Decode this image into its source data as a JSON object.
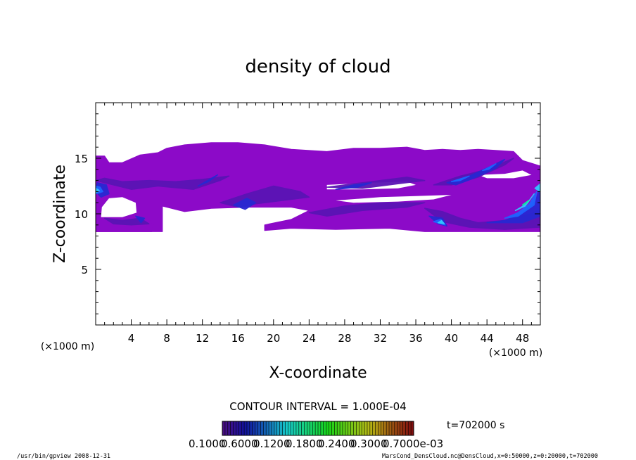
{
  "chart_data": {
    "type": "heatmap",
    "title": "density of cloud",
    "xlabel": "X-coordinate",
    "ylabel": "Z-coordinate",
    "x_unit_left": "(×1000 m)",
    "x_unit_right": "(×1000 m)",
    "xlim": [
      0,
      50
    ],
    "ylim": [
      0,
      20
    ],
    "x_ticks": [
      4,
      8,
      12,
      16,
      20,
      24,
      28,
      32,
      36,
      40,
      44,
      48
    ],
    "y_ticks": [
      5,
      10,
      15
    ],
    "contour_interval": "CONTOUR INTERVAL = 1.000E-04",
    "time_label": "t=702000 s",
    "colorbar_labels": [
      "0.1000",
      "0.6000",
      "0.1200",
      "0.1800",
      "0.2400",
      "0.3000",
      "0.7000e-03"
    ],
    "colors": {
      "level1": "#8c0ac8",
      "level2": "#5a14b4",
      "level3": "#2828d2",
      "level4": "#1e64ff",
      "level5": "#32c8ff",
      "level6": "#00ff96"
    },
    "regions": [
      {
        "level": 1,
        "points": [
          [
            0,
            8.4
          ],
          [
            0,
            15.2
          ],
          [
            1,
            15.2
          ],
          [
            1.5,
            14.6
          ],
          [
            3,
            14.6
          ],
          [
            5,
            15.3
          ],
          [
            7,
            15.5
          ],
          [
            8,
            15.9
          ],
          [
            10,
            16.2
          ],
          [
            13,
            16.4
          ],
          [
            16,
            16.4
          ],
          [
            19,
            16.2
          ],
          [
            22,
            15.8
          ],
          [
            26,
            15.6
          ],
          [
            29,
            15.9
          ],
          [
            32,
            15.9
          ],
          [
            35,
            16.0
          ],
          [
            37,
            15.7
          ],
          [
            39,
            15.8
          ],
          [
            41,
            15.7
          ],
          [
            43,
            15.8
          ],
          [
            45,
            15.7
          ],
          [
            47,
            15.6
          ],
          [
            48,
            14.8
          ],
          [
            50,
            14.3
          ],
          [
            50,
            8.4
          ],
          [
            37,
            8.4
          ],
          [
            33,
            8.7
          ],
          [
            27,
            8.6
          ],
          [
            22,
            8.7
          ],
          [
            19,
            8.5
          ],
          [
            19,
            9.0
          ],
          [
            22,
            9.5
          ],
          [
            24,
            10.3
          ],
          [
            22,
            10.6
          ],
          [
            17,
            10.6
          ],
          [
            13,
            10.5
          ],
          [
            10,
            10.2
          ],
          [
            9,
            10.4
          ],
          [
            7.5,
            10.7
          ],
          [
            7.5,
            8.4
          ]
        ]
      },
      {
        "level": 1,
        "points": [
          [
            0,
            8.4
          ],
          [
            0,
            9.2
          ],
          [
            2,
            9.6
          ],
          [
            4,
            9.7
          ],
          [
            5.5,
            9.9
          ],
          [
            6.5,
            9.0
          ],
          [
            6.3,
            8.4
          ]
        ]
      }
    ],
    "holes": [
      {
        "points": [
          [
            0.6,
            9.7
          ],
          [
            3,
            9.7
          ],
          [
            4.6,
            10.1
          ],
          [
            4.5,
            11.0
          ],
          [
            3,
            11.5
          ],
          [
            1.5,
            11.4
          ],
          [
            0.7,
            10.6
          ]
        ]
      },
      {
        "points": [
          [
            26,
            12.6
          ],
          [
            31,
            12.8
          ],
          [
            35,
            12.9
          ],
          [
            36,
            12.6
          ],
          [
            34,
            12.3
          ],
          [
            30,
            12.2
          ],
          [
            26,
            12.2
          ]
        ]
      },
      {
        "points": [
          [
            27,
            11.2
          ],
          [
            32,
            11.5
          ],
          [
            36,
            11.6
          ],
          [
            40,
            11.7
          ],
          [
            38,
            11.3
          ],
          [
            34,
            11.1
          ],
          [
            29,
            11.0
          ]
        ]
      },
      {
        "points": [
          [
            43,
            13.5
          ],
          [
            46,
            13.6
          ],
          [
            48,
            13.9
          ],
          [
            49,
            13.5
          ],
          [
            47,
            13.2
          ],
          [
            44,
            13.2
          ]
        ]
      },
      {
        "points": [
          [
            8,
            9.7
          ],
          [
            12,
            9.5
          ],
          [
            16,
            9.4
          ],
          [
            18,
            9.8
          ],
          [
            15,
            10.0
          ],
          [
            11,
            10.0
          ]
        ]
      }
    ],
    "features": [
      {
        "level": 2,
        "points": [
          [
            0,
            13.0
          ],
          [
            2,
            12.6
          ],
          [
            4,
            12.2
          ],
          [
            7,
            12.5
          ],
          [
            11,
            12.2
          ],
          [
            14,
            13.0
          ],
          [
            15,
            13.4
          ],
          [
            12,
            13.1
          ],
          [
            9,
            12.9
          ],
          [
            6,
            13.0
          ],
          [
            3,
            12.9
          ],
          [
            1,
            13.2
          ]
        ]
      },
      {
        "level": 2,
        "points": [
          [
            14,
            11.0
          ],
          [
            17,
            11.8
          ],
          [
            20,
            12.5
          ],
          [
            23,
            12.0
          ],
          [
            24,
            11.5
          ],
          [
            21,
            11.2
          ],
          [
            18,
            10.9
          ],
          [
            16,
            10.6
          ]
        ]
      },
      {
        "level": 2,
        "points": [
          [
            26,
            12.4
          ],
          [
            29,
            12.7
          ],
          [
            32,
            13.0
          ],
          [
            35,
            13.3
          ],
          [
            37,
            13.0
          ],
          [
            34,
            12.7
          ],
          [
            30,
            12.3
          ]
        ]
      },
      {
        "level": 2,
        "points": [
          [
            38,
            12.6
          ],
          [
            41,
            13.4
          ],
          [
            44,
            14.0
          ],
          [
            47,
            15.0
          ],
          [
            46,
            14.4
          ],
          [
            43,
            13.3
          ],
          [
            40,
            12.6
          ]
        ]
      },
      {
        "level": 2,
        "points": [
          [
            24,
            10.1
          ],
          [
            28,
            10.7
          ],
          [
            32,
            11.0
          ],
          [
            37,
            11.0
          ],
          [
            35,
            10.6
          ],
          [
            30,
            10.3
          ],
          [
            26,
            9.8
          ]
        ]
      },
      {
        "level": 2,
        "points": [
          [
            37,
            10.5
          ],
          [
            39,
            10.2
          ],
          [
            41,
            9.6
          ],
          [
            43,
            9.2
          ],
          [
            46,
            9.4
          ],
          [
            49,
            10.0
          ],
          [
            50,
            10.5
          ],
          [
            50,
            8.8
          ],
          [
            46,
            8.6
          ],
          [
            42,
            8.8
          ],
          [
            39,
            9.3
          ]
        ]
      },
      {
        "level": 2,
        "points": [
          [
            1,
            9.6
          ],
          [
            3,
            9.4
          ],
          [
            5,
            9.6
          ],
          [
            6,
            9.1
          ],
          [
            4,
            9.0
          ],
          [
            2,
            9.1
          ]
        ]
      },
      {
        "level": 3,
        "points": [
          [
            0,
            12.0
          ],
          [
            0.6,
            11.5
          ],
          [
            1.5,
            11.8
          ],
          [
            1.2,
            12.6
          ],
          [
            0.2,
            12.8
          ]
        ]
      },
      {
        "level": 3,
        "points": [
          [
            11.5,
            12.5
          ],
          [
            12.7,
            12.9
          ],
          [
            13.7,
            13.5
          ],
          [
            12.8,
            13.1
          ]
        ]
      },
      {
        "level": 3,
        "points": [
          [
            15.5,
            10.8
          ],
          [
            17,
            11.4
          ],
          [
            18,
            11.0
          ],
          [
            16.8,
            10.4
          ]
        ]
      },
      {
        "level": 3,
        "points": [
          [
            27,
            12.2
          ],
          [
            29,
            12.6
          ],
          [
            31,
            12.8
          ],
          [
            29.5,
            12.4
          ]
        ]
      },
      {
        "level": 3,
        "points": [
          [
            39.5,
            12.8
          ],
          [
            42,
            13.4
          ],
          [
            44.5,
            14.3
          ],
          [
            46,
            14.9
          ],
          [
            45,
            14.1
          ],
          [
            42.5,
            13.2
          ],
          [
            40.5,
            12.6
          ]
        ]
      },
      {
        "level": 3,
        "points": [
          [
            37.5,
            9.8
          ],
          [
            38.5,
            9.1
          ],
          [
            39.5,
            8.9
          ],
          [
            39.0,
            9.6
          ]
        ]
      },
      {
        "level": 3,
        "points": [
          [
            44,
            9.2
          ],
          [
            46,
            9.4
          ],
          [
            48,
            10.0
          ],
          [
            49.5,
            11.2
          ],
          [
            50,
            12.5
          ],
          [
            50,
            9.8
          ],
          [
            48,
            9.2
          ]
        ]
      },
      {
        "level": 3,
        "points": [
          [
            4.5,
            9.8
          ],
          [
            5.1,
            9.2
          ],
          [
            5.5,
            9.6
          ]
        ]
      },
      {
        "level": 4,
        "points": [
          [
            0,
            11.8
          ],
          [
            0.8,
            12.0
          ],
          [
            0.5,
            12.4
          ],
          [
            0,
            12.5
          ]
        ]
      },
      {
        "level": 4,
        "points": [
          [
            40,
            12.9
          ],
          [
            42,
            13.4
          ],
          [
            41,
            13.0
          ]
        ]
      },
      {
        "level": 4,
        "points": [
          [
            43.5,
            13.9
          ],
          [
            45,
            14.5
          ],
          [
            44.2,
            14.0
          ]
        ]
      },
      {
        "level": 4,
        "points": [
          [
            38,
            9.3
          ],
          [
            39.3,
            9.0
          ],
          [
            38.8,
            9.5
          ]
        ]
      },
      {
        "level": 4,
        "points": [
          [
            46,
            9.6
          ],
          [
            47.5,
            10.1
          ],
          [
            48.8,
            10.9
          ],
          [
            49.6,
            12.0
          ],
          [
            49.3,
            10.8
          ],
          [
            47.5,
            9.8
          ]
        ]
      },
      {
        "level": 5,
        "points": [
          [
            0,
            11.9
          ],
          [
            0.4,
            12.1
          ],
          [
            0,
            12.3
          ]
        ]
      },
      {
        "level": 5,
        "points": [
          [
            38.5,
            9.2
          ],
          [
            39.2,
            9.1
          ],
          [
            38.9,
            9.4
          ]
        ]
      },
      {
        "level": 5,
        "points": [
          [
            47.2,
            10.3
          ],
          [
            48.5,
            10.9
          ],
          [
            49.3,
            11.8
          ],
          [
            48.3,
            10.7
          ]
        ]
      },
      {
        "level": 5,
        "points": [
          [
            49.4,
            12.3
          ],
          [
            50,
            12.7
          ],
          [
            50,
            12.0
          ]
        ]
      },
      {
        "level": 6,
        "points": [
          [
            48.0,
            10.8
          ],
          [
            48.7,
            11.2
          ],
          [
            48.3,
            10.9
          ]
        ]
      }
    ]
  },
  "footer": {
    "left": "/usr/bin/gpview   2008-12-31",
    "right": "MarsCond_DensCloud.nc@DensCloud,x=0:50000,z=0:20000,t=702000"
  }
}
